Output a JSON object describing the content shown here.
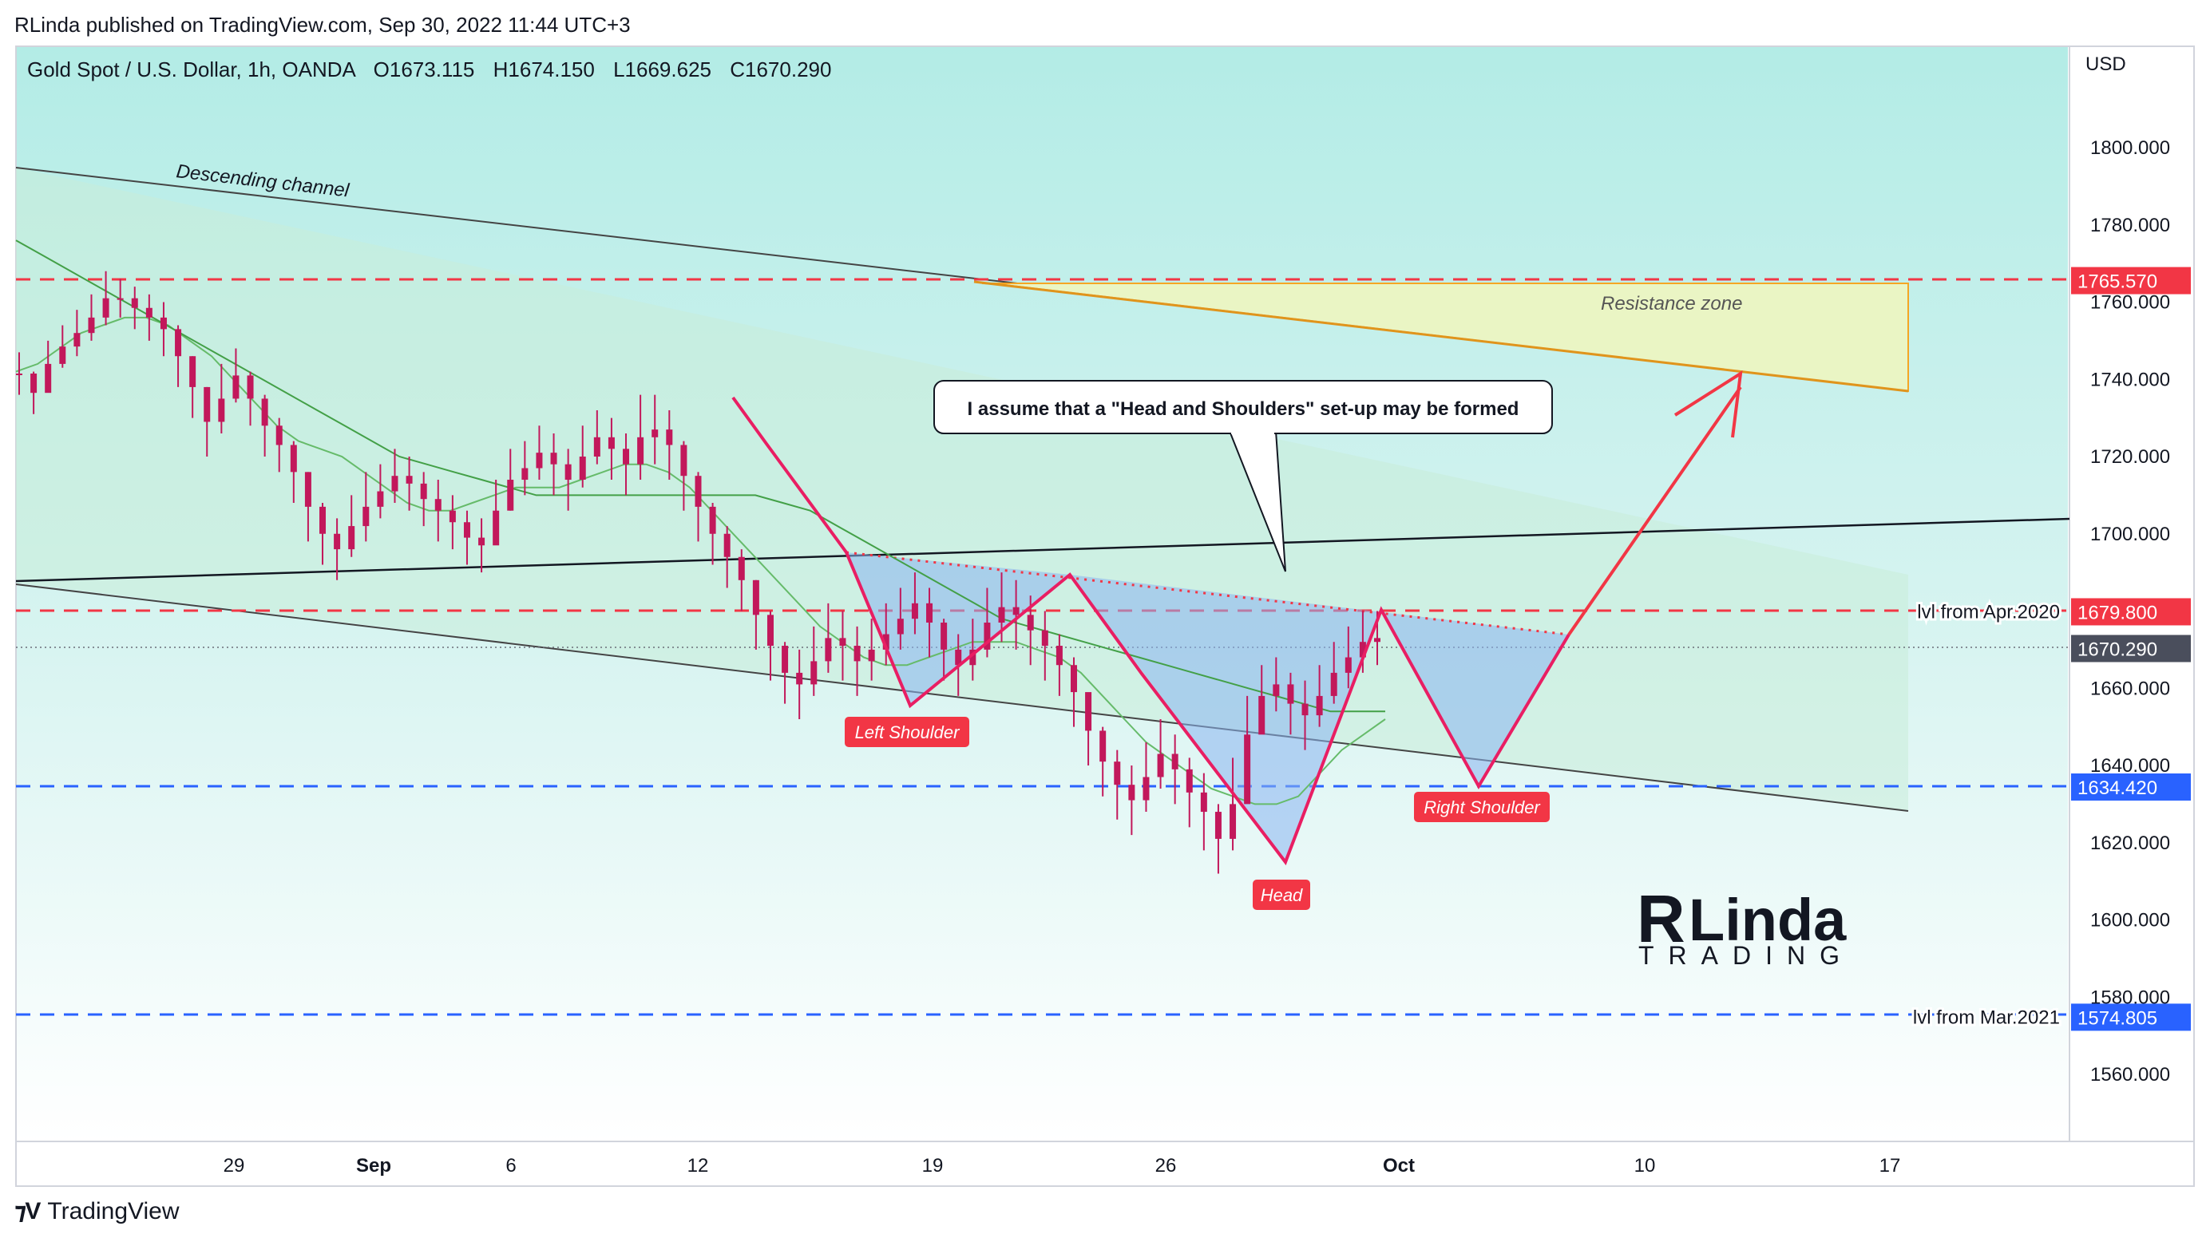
{
  "header": {
    "published_by": "RLinda published on TradingView.com, Sep 30, 2022 11:44 UTC+3",
    "symbol_line": "Gold Spot / U.S. Dollar, 1h, OANDA",
    "open": "O1673.115",
    "high": "H1674.150",
    "low": "L1669.625",
    "close": "C1670.290"
  },
  "footer": {
    "brand": "TradingView"
  },
  "logo": {
    "top": "RLinda",
    "bottom": "TRADING"
  },
  "colors": {
    "bullish": "#26a69a",
    "bearish": "#ef5350",
    "candle": "#c2185b",
    "resistance_red": "#f23645",
    "support_blue": "#2962ff",
    "ma": "#4caf50",
    "pattern_line": "#e91e63",
    "resistance_zone_fill": "#eaf5c4",
    "resistance_zone_border": "#f5a623"
  },
  "chart_data": {
    "type": "candlestick",
    "title": "Gold Spot / U.S. Dollar, 1h, OANDA",
    "currency": "USD",
    "y_axis": {
      "label": "USD",
      "ticks": [
        "1800.000",
        "1780.000",
        "1760.000",
        "1740.000",
        "1720.000",
        "1700.000",
        "1660.000",
        "1640.000",
        "1620.000",
        "1600.000",
        "1580.000",
        "1560.000"
      ],
      "range": [
        1550,
        1820
      ]
    },
    "x_axis": {
      "ticks": [
        {
          "label": "29",
          "bold": false
        },
        {
          "label": "Sep",
          "bold": true
        },
        {
          "label": "6",
          "bold": false
        },
        {
          "label": "12",
          "bold": false
        },
        {
          "label": "19",
          "bold": false
        },
        {
          "label": "26",
          "bold": false
        },
        {
          "label": "Oct",
          "bold": true
        },
        {
          "label": "10",
          "bold": false
        },
        {
          "label": "17",
          "bold": false
        }
      ]
    },
    "price_tags": [
      {
        "value": "1765.570",
        "color": "#f23645",
        "label": ""
      },
      {
        "value": "1679.800",
        "color": "#f23645",
        "label": "lvl from Apr.2020"
      },
      {
        "value": "1670.290",
        "color": "#4a4e5c",
        "label": ""
      },
      {
        "value": "1634.420",
        "color": "#2962ff",
        "label": ""
      },
      {
        "value": "1574.805",
        "color": "#2962ff",
        "label": "lvl from Mar.2021"
      }
    ],
    "price_path": [
      [
        1738,
        1745
      ],
      [
        1733,
        1740
      ],
      [
        1740,
        1748
      ],
      [
        1745,
        1752
      ],
      [
        1748,
        1756
      ],
      [
        1752,
        1760
      ],
      [
        1756,
        1766
      ],
      [
        1758,
        1764
      ],
      [
        1755,
        1762
      ],
      [
        1752,
        1760
      ],
      [
        1748,
        1758
      ],
      [
        1740,
        1752
      ],
      [
        1732,
        1744
      ],
      [
        1722,
        1736
      ],
      [
        1728,
        1742
      ],
      [
        1736,
        1746
      ],
      [
        1730,
        1740
      ],
      [
        1722,
        1734
      ],
      [
        1718,
        1728
      ],
      [
        1710,
        1722
      ],
      [
        1700,
        1714
      ],
      [
        1694,
        1706
      ],
      [
        1690,
        1702
      ],
      [
        1696,
        1708
      ],
      [
        1700,
        1714
      ],
      [
        1706,
        1716
      ],
      [
        1710,
        1720
      ],
      [
        1708,
        1718
      ],
      [
        1704,
        1714
      ],
      [
        1700,
        1712
      ],
      [
        1698,
        1708
      ],
      [
        1694,
        1704
      ],
      [
        1692,
        1702
      ],
      [
        1700,
        1712
      ],
      [
        1708,
        1720
      ],
      [
        1712,
        1722
      ],
      [
        1716,
        1726
      ],
      [
        1712,
        1724
      ],
      [
        1708,
        1720
      ],
      [
        1714,
        1726
      ],
      [
        1720,
        1730
      ],
      [
        1716,
        1728
      ],
      [
        1712,
        1724
      ],
      [
        1716,
        1734
      ],
      [
        1720,
        1734
      ],
      [
        1716,
        1730
      ],
      [
        1708,
        1722
      ],
      [
        1700,
        1714
      ],
      [
        1694,
        1706
      ],
      [
        1688,
        1700
      ],
      [
        1682,
        1694
      ],
      [
        1672,
        1686
      ],
      [
        1664,
        1678
      ],
      [
        1658,
        1670
      ],
      [
        1654,
        1668
      ],
      [
        1660,
        1674
      ],
      [
        1666,
        1680
      ],
      [
        1664,
        1678
      ],
      [
        1660,
        1674
      ],
      [
        1664,
        1676
      ],
      [
        1668,
        1680
      ],
      [
        1672,
        1684
      ],
      [
        1676,
        1688
      ],
      [
        1670,
        1684
      ],
      [
        1664,
        1676
      ],
      [
        1660,
        1672
      ],
      [
        1664,
        1676
      ],
      [
        1670,
        1684
      ],
      [
        1674,
        1688
      ],
      [
        1672,
        1686
      ],
      [
        1668,
        1682
      ],
      [
        1664,
        1678
      ],
      [
        1660,
        1672
      ],
      [
        1652,
        1666
      ],
      [
        1642,
        1656
      ],
      [
        1634,
        1648
      ],
      [
        1628,
        1642
      ],
      [
        1624,
        1638
      ],
      [
        1630,
        1644
      ],
      [
        1636,
        1650
      ],
      [
        1632,
        1646
      ],
      [
        1626,
        1640
      ],
      [
        1620,
        1636
      ],
      [
        1614,
        1628
      ],
      [
        1620,
        1640
      ],
      [
        1640,
        1656
      ],
      [
        1652,
        1664
      ],
      [
        1656,
        1666
      ],
      [
        1650,
        1662
      ],
      [
        1646,
        1660
      ],
      [
        1652,
        1664
      ],
      [
        1658,
        1670
      ],
      [
        1662,
        1674
      ],
      [
        1666,
        1678
      ],
      [
        1668,
        1678
      ]
    ],
    "moving_averages": [
      {
        "name": "MA fast",
        "color": "#66bb6a",
        "values": [
          1742,
          1744,
          1748,
          1752,
          1754,
          1756,
          1756,
          1754,
          1750,
          1746,
          1740,
          1734,
          1728,
          1724,
          1722,
          1720,
          1716,
          1712,
          1708,
          1706,
          1706,
          1708,
          1710,
          1712,
          1712,
          1712,
          1714,
          1716,
          1718,
          1718,
          1716,
          1712,
          1706,
          1700,
          1694,
          1688,
          1682,
          1676,
          1672,
          1668,
          1666,
          1666,
          1668,
          1670,
          1672,
          1672,
          1672,
          1670,
          1668,
          1664,
          1658,
          1652,
          1646,
          1642,
          1638,
          1634,
          1632,
          1630,
          1630,
          1632,
          1638,
          1644,
          1648,
          1652
        ]
      },
      {
        "name": "MA slow",
        "color": "#43a047",
        "values": [
          1776,
          1772,
          1768,
          1764,
          1760,
          1756,
          1752,
          1748,
          1744,
          1740,
          1736,
          1732,
          1728,
          1724,
          1720,
          1718,
          1716,
          1714,
          1712,
          1710,
          1710,
          1710,
          1710,
          1710,
          1710,
          1710,
          1710,
          1710,
          1708,
          1706,
          1702,
          1698,
          1694,
          1690,
          1686,
          1682,
          1678,
          1676,
          1674,
          1672,
          1670,
          1668,
          1666,
          1664,
          1662,
          1660,
          1658,
          1656,
          1654,
          1654,
          1654
        ]
      }
    ],
    "annotations": {
      "descending_channel_label": "Descending channel",
      "resistance_zone_label": "Resistance zone",
      "callout": "I assume that a \"Head and Shoulders\" set-up may be formed",
      "left_shoulder": "Left Shoulder",
      "head": "Head",
      "right_shoulder": "Right Shoulder"
    },
    "grid": false,
    "legend": "none"
  }
}
